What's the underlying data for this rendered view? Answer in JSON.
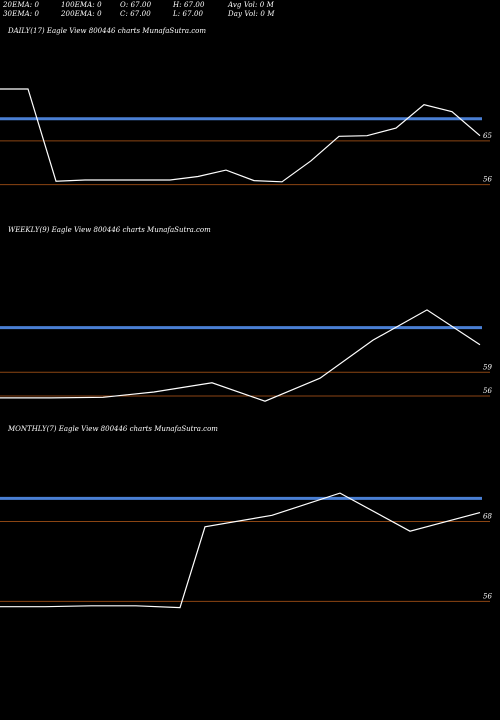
{
  "header": {
    "row1": [
      {
        "label": "20EMA: 0"
      },
      {
        "label": "100EMA: 0"
      },
      {
        "label": "O: 67.00"
      },
      {
        "label": "H: 67.00"
      },
      {
        "label": "Avg Vol: 0  M"
      }
    ],
    "row2": [
      {
        "label": "30EMA: 0"
      },
      {
        "label": "200EMA: 0"
      },
      {
        "label": "C: 67.00"
      },
      {
        "label": "L: 67.00"
      },
      {
        "label": "Day Vol: 0  M"
      }
    ]
  },
  "colors": {
    "background": "#000000",
    "price_line": "#ffffff",
    "ema_line": "#4a7fd4",
    "level_line": "#8b4513"
  },
  "chart_data": [
    {
      "type": "line",
      "title": "DAILY(17) Eagle  View  800446  charts MunafaSutra.com",
      "x": [
        1,
        2,
        3,
        4,
        5,
        6,
        7,
        8,
        9,
        10,
        11,
        12,
        13,
        14,
        15,
        16,
        17,
        18
      ],
      "series": [
        {
          "values": [
            71.6,
            71.6,
            55.8,
            56.0,
            56.0,
            56.0,
            56.0,
            56.6,
            57.7,
            55.9,
            55.7,
            59.3,
            63.5,
            63.6,
            64.9,
            68.9,
            67.7,
            63.6
          ]
        }
      ],
      "ema_level": 66.5,
      "levels": [
        {
          "value": 62.7,
          "label": "65"
        },
        {
          "value": 55.2,
          "label": "56"
        }
      ],
      "ylim": [
        50,
        80
      ]
    },
    {
      "type": "line",
      "title": "WEEKLY(9) Eagle  View  800446  charts MunafaSutra.com",
      "x": [
        1,
        2,
        3,
        4,
        5,
        6,
        7,
        8,
        9,
        10
      ],
      "series": [
        {
          "values": [
            55.8,
            55.8,
            55.9,
            56.7,
            58.1,
            55.3,
            58.8,
            64.6,
            69.2,
            63.9
          ]
        }
      ],
      "ema_level": 66.5,
      "levels": [
        {
          "value": 59.7,
          "label": "59"
        },
        {
          "value": 56.1,
          "label": "56"
        }
      ],
      "ylim": [
        50,
        80
      ]
    },
    {
      "type": "line",
      "title": "MONTHLY(7) Eagle  View  800446  charts MunafaSutra.com",
      "x": [
        1,
        2,
        3,
        4,
        5,
        6,
        7,
        8,
        9,
        10
      ],
      "series": [
        {
          "values": [
            56.0,
            56.0,
            56.1,
            56.1,
            55.9,
            65.0,
            66.3,
            68.8,
            64.5,
            66.6
          ]
        }
      ],
      "ema_level": 68.2,
      "levels": [
        {
          "value": 65.6,
          "label": "68"
        },
        {
          "value": 56.6,
          "label": "56"
        }
      ],
      "ylim": [
        50,
        75
      ]
    }
  ]
}
